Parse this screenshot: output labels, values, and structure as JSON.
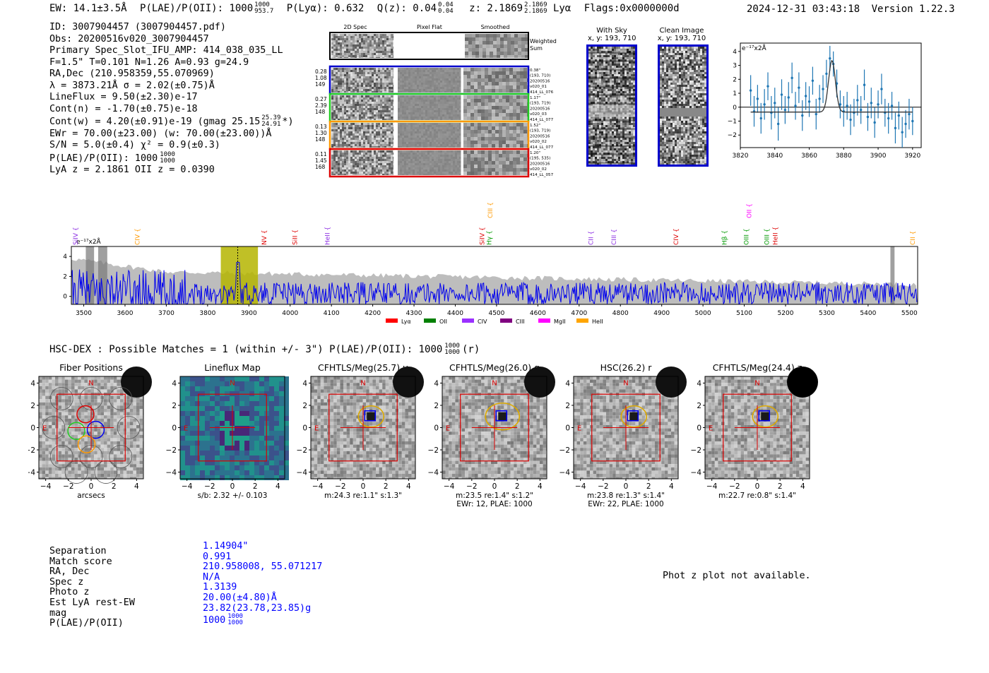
{
  "header": {
    "ew": "EW: 14.1±3.5Å",
    "plae": "P(LAE)/P(OII): 1000",
    "plae_hi": "1000",
    "plae_lo": "953.7",
    "plya": "P(Lyα): 0.632",
    "qz": "Q(z): 0.04",
    "qz_hi": "0.04",
    "qz_lo": "0.04",
    "z": "z: 2.1869",
    "z_hi": "2.1869",
    "z_lo": "2.1869",
    "z_line": "Lyα",
    "flags": "Flags:0x0000000d",
    "timestamp": "2024-12-31 03:43:18",
    "version": "Version 1.22.3"
  },
  "info": {
    "lines": [
      "ID: 3007904457 (3007904457.pdf)",
      "Obs: 20200516v020_3007904457",
      "Primary Spec_Slot_IFU_AMP: 414_038_035_LL",
      "F=1.5\"  T=0.101  N=1.26  A=0.93  g=24.9",
      "RA,Dec (210.958359,55.070969)",
      "λ = 3873.21Å  σ = 2.02(±0.75)Å",
      "LineFlux = 9.50(±2.30)e-17",
      "Cont(n) = -1.70(±0.75)e-18",
      "Cont(w) = 4.20(±0.91)e-19 (gmag 25.15",
      "EWr = 70.00(±23.00)  (w: 70.00(±23.00))Å",
      "S/N = 5.0(±0.4)  χ² = 0.9(±0.3)",
      "P(LAE)/P(OII): 1000",
      "LyA z = 2.1861  OII z = 0.0390"
    ],
    "gmag_hi": "25.39",
    "gmag_lo": "24.91",
    "gmag_close": "*)",
    "plae_hi": "1000",
    "plae_lo": "1000"
  },
  "cutouts": {
    "col_2d": "2D Spec",
    "col_flat": "Pixel Flat",
    "col_smooth": "Smoothed",
    "weighted1": "Weighted",
    "weighted2": "Sum",
    "rows": [
      {
        "left": [
          "0.28",
          "1.08",
          "149"
        ],
        "right": [
          "0.38\"",
          "(193, 710)",
          "20200516",
          "v020_01",
          "414_LL_076"
        ],
        "color": "#0000cc"
      },
      {
        "left": [
          "0.27",
          "2.39",
          "148"
        ],
        "right": [
          "1.17\"",
          "(193, 719)",
          "20200516",
          "v020_03",
          "414_LL_077"
        ],
        "color": "#22cc22"
      },
      {
        "left": [
          "0.13",
          "1.30",
          "148"
        ],
        "right": [
          "1.52\"",
          "(193, 719)",
          "20200516",
          "v020_02",
          "414_LL_077"
        ],
        "color": "#ff9900"
      },
      {
        "left": [
          "0.11",
          "1.45",
          "168"
        ],
        "right": [
          "1.20\"",
          "(195, 535)",
          "20200516",
          "v020_02",
          "414_LL_057"
        ],
        "color": "#dd0000"
      }
    ],
    "with_sky": "With Sky",
    "clean": "Clean Image",
    "xy": "x, y: 193, 710"
  },
  "zoom_chart": {
    "type": "scatter",
    "ylabel": "e⁻¹⁷x2Å",
    "xlim": [
      3820,
      3925
    ],
    "ylim": [
      -2.9,
      4.6
    ],
    "xticks": [
      "3820",
      "3840",
      "3860",
      "3880",
      "3900",
      "3920"
    ],
    "yticks": [
      "4",
      "3",
      "2",
      "1",
      "0",
      "−1",
      "−2"
    ],
    "x": [
      3826,
      3828,
      3830,
      3832,
      3834,
      3836,
      3838,
      3840,
      3842,
      3844,
      3846,
      3848,
      3850,
      3852,
      3854,
      3856,
      3858,
      3860,
      3862,
      3864,
      3866,
      3868,
      3870,
      3872,
      3874,
      3876,
      3878,
      3880,
      3882,
      3884,
      3886,
      3888,
      3890,
      3892,
      3894,
      3896,
      3898,
      3900,
      3902,
      3904,
      3906,
      3908,
      3910,
      3912,
      3914,
      3916,
      3918,
      3920
    ],
    "y": [
      1.2,
      -0.3,
      0.6,
      -0.8,
      0.2,
      1.5,
      -0.4,
      0.3,
      -1.2,
      0.9,
      -0.2,
      0.7,
      2.1,
      0.1,
      1.4,
      -0.6,
      0.8,
      0.4,
      1.9,
      -0.5,
      0.6,
      1.3,
      2.4,
      3.5,
      3.1,
      1.7,
      0.2,
      -0.3,
      0.1,
      -0.9,
      -0.4,
      0.5,
      -0.2,
      1.6,
      -0.7,
      0.3,
      -1.1,
      0.2,
      1.3,
      -0.4,
      -0.8,
      0.1,
      -1.5,
      -0.6,
      -1.8,
      -1.2,
      -0.5,
      -1.0
    ],
    "err": [
      1.1,
      1.1,
      1.0,
      1.1,
      1.1,
      1.0,
      1.2,
      1.1,
      1.2,
      1.1,
      1.0,
      1.1,
      1.1,
      1.0,
      1.1,
      1.1,
      1.0,
      1.1,
      1.0,
      1.1,
      1.0,
      1.0,
      1.0,
      0.9,
      0.9,
      1.0,
      1.0,
      1.1,
      1.0,
      1.1,
      1.0,
      1.1,
      1.0,
      1.1,
      1.0,
      1.1,
      1.1,
      1.0,
      1.1,
      1.0,
      1.1,
      1.0,
      1.1,
      1.0,
      1.1,
      1.0,
      1.1,
      1.0
    ],
    "fit": {
      "center": 3873.2,
      "sigma": 2.0,
      "amp": 3.7,
      "base": -0.35
    }
  },
  "spectrum": {
    "type": "line",
    "ylabel": "e⁻¹⁷x2Å",
    "xlim": [
      3470,
      5520
    ],
    "ylim": [
      -0.8,
      5.0
    ],
    "xticks": [
      "3500",
      "3600",
      "3700",
      "3800",
      "3900",
      "4000",
      "4100",
      "4200",
      "4300",
      "4400",
      "4500",
      "4600",
      "4700",
      "4800",
      "4900",
      "5000",
      "5100",
      "5200",
      "5300",
      "5400",
      "5500"
    ],
    "yticks": [
      "4",
      "2",
      "0"
    ],
    "highlight": [
      3832,
      3922
    ],
    "marker_x": 3873,
    "hatch_bands": [
      [
        3505,
        3525
      ],
      [
        3535,
        3557
      ],
      [
        5454,
        5464
      ]
    ],
    "lines": [
      {
        "label": "SiIV",
        "x": 3480,
        "color": "#8a2be2",
        "high": false
      },
      {
        "label": "CIV",
        "x": 3630,
        "color": "#ff9900",
        "high": false
      },
      {
        "label": "NV",
        "x": 3937,
        "color": "#dd0000",
        "high": false
      },
      {
        "label": "SiII",
        "x": 4012,
        "color": "#dd0000",
        "high": false
      },
      {
        "label": "HeII",
        "x": 4090,
        "color": "#8a2be2",
        "high": false
      },
      {
        "label": "SiIV",
        "x": 4465,
        "color": "#dd0000",
        "high": false
      },
      {
        "label": "Hγ",
        "x": 4482,
        "color": "#009900",
        "high": false
      },
      {
        "label": "CIII",
        "x": 4485,
        "color": "#ff9900",
        "high": true
      },
      {
        "label": "CII",
        "x": 4729,
        "color": "#8a2be2",
        "high": false
      },
      {
        "label": "CIII",
        "x": 4784,
        "color": "#8a2be2",
        "high": false
      },
      {
        "label": "CIV",
        "x": 4935,
        "color": "#dd0000",
        "high": false
      },
      {
        "label": "Hβ",
        "x": 5052,
        "color": "#009900",
        "high": false
      },
      {
        "label": "OIII",
        "x": 5105,
        "color": "#009900",
        "high": false
      },
      {
        "label": "OII",
        "x": 5112,
        "color": "#ff00ff",
        "high": true
      },
      {
        "label": "OIII",
        "x": 5155,
        "color": "#009900",
        "high": false
      },
      {
        "label": "HeII",
        "x": 5175,
        "color": "#dd0000",
        "high": false
      },
      {
        "label": "CII",
        "x": 5508,
        "color": "#ff9900",
        "high": false
      }
    ],
    "legend": [
      {
        "label": "Lyα",
        "color": "#ff0000"
      },
      {
        "label": "OII",
        "color": "#008000"
      },
      {
        "label": "CIV",
        "color": "#9b30ff"
      },
      {
        "label": "CIII",
        "color": "#800080"
      },
      {
        "label": "MgII",
        "color": "#ff00ff"
      },
      {
        "label": "HeII",
        "color": "#ffa500"
      }
    ]
  },
  "matches": {
    "line": "HSC-DEX : Possible Matches = 1 (within +/- 3\")  P(LAE)/P(OII): 1000",
    "hi": "1000",
    "lo": "1000",
    "suffix": "(r)"
  },
  "imaging": {
    "ticks": [
      "−4",
      "−2",
      "0",
      "2",
      "4"
    ],
    "panels": [
      {
        "title": "Fiber Positions",
        "caption1": "arcsecs",
        "caption2": ""
      },
      {
        "title": "Lineflux Map",
        "caption1": "s/b: 2.32 +/- 0.103",
        "caption2": ""
      },
      {
        "title": "CFHTLS/Meg(25.7) u",
        "caption1": "m:24.3  re:1.1\"  s:1.3\"",
        "caption2": ""
      },
      {
        "title": "CFHTLS/Meg(26.0) g",
        "caption1": "m:23.5  re:1.4\"  s:1.2\"",
        "caption2": "EWr: 12, PLAE: 1000"
      },
      {
        "title": "HSC(26.2) r",
        "caption1": "m:23.8  re:1.3\"  s:1.4\"",
        "caption2": "EWr: 22, PLAE: 1000"
      },
      {
        "title": "CFHTLS/Meg(24.4) z",
        "caption1": "m:22.7  re:0.8\"  s:1.4\"",
        "caption2": ""
      }
    ],
    "north": "N",
    "east": "E"
  },
  "summary": {
    "labels": [
      "Separation",
      "Match score",
      "RA, Dec",
      "Spec z",
      "Photo z",
      "Est LyA rest-EW",
      "mag",
      "P(LAE)/P(OII)"
    ],
    "values": [
      "1.14904\"",
      "0.991",
      "210.958008, 55.071217",
      "N/A",
      "1.3139",
      "20.00(±4.80)Å",
      "23.82(23.78,23.85)g",
      "1000"
    ],
    "plae_hi": "1000",
    "plae_lo": "1000",
    "photz_note": "Phot z plot not available."
  }
}
